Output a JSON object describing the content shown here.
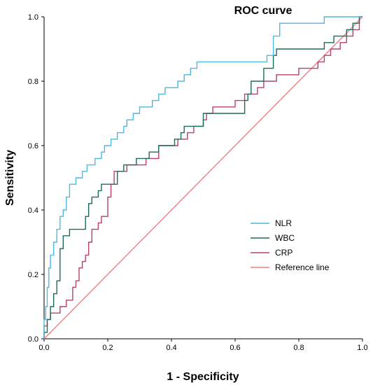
{
  "chart_data": {
    "type": "line",
    "title": "ROC curve",
    "xlabel": "1 - Specificity",
    "ylabel": "Sensitivity",
    "xlim": [
      0.0,
      1.0
    ],
    "ylim": [
      0.0,
      1.0
    ],
    "x_ticks": [
      "0.0",
      "0.2",
      "0.4",
      "0.6",
      "0.8",
      "1.0"
    ],
    "y_ticks": [
      "0.0",
      "0.2",
      "0.4",
      "0.6",
      "0.8",
      "1.0"
    ],
    "grid": false,
    "legend_position": "bottom-right",
    "series": [
      {
        "name": "NLR",
        "color": "#4fb8df",
        "points": [
          [
            0,
            0
          ],
          [
            0,
            0.06
          ],
          [
            0.005,
            0.06
          ],
          [
            0.005,
            0.1
          ],
          [
            0.01,
            0.1
          ],
          [
            0.01,
            0.16
          ],
          [
            0.015,
            0.16
          ],
          [
            0.015,
            0.22
          ],
          [
            0.02,
            0.22
          ],
          [
            0.02,
            0.26
          ],
          [
            0.03,
            0.26
          ],
          [
            0.03,
            0.3
          ],
          [
            0.04,
            0.3
          ],
          [
            0.04,
            0.34
          ],
          [
            0.05,
            0.34
          ],
          [
            0.05,
            0.38
          ],
          [
            0.06,
            0.38
          ],
          [
            0.06,
            0.4
          ],
          [
            0.07,
            0.4
          ],
          [
            0.07,
            0.44
          ],
          [
            0.08,
            0.44
          ],
          [
            0.08,
            0.48
          ],
          [
            0.1,
            0.48
          ],
          [
            0.1,
            0.5
          ],
          [
            0.12,
            0.5
          ],
          [
            0.12,
            0.52
          ],
          [
            0.135,
            0.52
          ],
          [
            0.135,
            0.54
          ],
          [
            0.16,
            0.54
          ],
          [
            0.16,
            0.56
          ],
          [
            0.18,
            0.56
          ],
          [
            0.18,
            0.58
          ],
          [
            0.19,
            0.58
          ],
          [
            0.19,
            0.6
          ],
          [
            0.21,
            0.6
          ],
          [
            0.21,
            0.62
          ],
          [
            0.23,
            0.62
          ],
          [
            0.23,
            0.64
          ],
          [
            0.25,
            0.64
          ],
          [
            0.25,
            0.66
          ],
          [
            0.26,
            0.66
          ],
          [
            0.26,
            0.68
          ],
          [
            0.28,
            0.68
          ],
          [
            0.28,
            0.7
          ],
          [
            0.3,
            0.7
          ],
          [
            0.3,
            0.72
          ],
          [
            0.34,
            0.72
          ],
          [
            0.34,
            0.74
          ],
          [
            0.36,
            0.74
          ],
          [
            0.36,
            0.76
          ],
          [
            0.38,
            0.76
          ],
          [
            0.38,
            0.78
          ],
          [
            0.42,
            0.78
          ],
          [
            0.42,
            0.8
          ],
          [
            0.44,
            0.8
          ],
          [
            0.44,
            0.82
          ],
          [
            0.46,
            0.82
          ],
          [
            0.46,
            0.84
          ],
          [
            0.48,
            0.84
          ],
          [
            0.48,
            0.86
          ],
          [
            0.7,
            0.86
          ],
          [
            0.7,
            0.88
          ],
          [
            0.72,
            0.88
          ],
          [
            0.72,
            0.94
          ],
          [
            0.74,
            0.94
          ],
          [
            0.74,
            0.98
          ],
          [
            0.88,
            0.98
          ],
          [
            0.88,
            1.0
          ],
          [
            1.0,
            1.0
          ]
        ]
      },
      {
        "name": "WBC",
        "color": "#1d6b5c",
        "points": [
          [
            0,
            0
          ],
          [
            0,
            0.02
          ],
          [
            0.01,
            0.02
          ],
          [
            0.01,
            0.06
          ],
          [
            0.02,
            0.06
          ],
          [
            0.02,
            0.1
          ],
          [
            0.03,
            0.1
          ],
          [
            0.03,
            0.14
          ],
          [
            0.04,
            0.14
          ],
          [
            0.04,
            0.18
          ],
          [
            0.05,
            0.18
          ],
          [
            0.05,
            0.28
          ],
          [
            0.06,
            0.28
          ],
          [
            0.06,
            0.32
          ],
          [
            0.08,
            0.32
          ],
          [
            0.08,
            0.34
          ],
          [
            0.13,
            0.34
          ],
          [
            0.13,
            0.38
          ],
          [
            0.14,
            0.38
          ],
          [
            0.14,
            0.42
          ],
          [
            0.15,
            0.42
          ],
          [
            0.15,
            0.44
          ],
          [
            0.17,
            0.44
          ],
          [
            0.17,
            0.46
          ],
          [
            0.18,
            0.46
          ],
          [
            0.18,
            0.48
          ],
          [
            0.23,
            0.48
          ],
          [
            0.23,
            0.52
          ],
          [
            0.25,
            0.52
          ],
          [
            0.25,
            0.54
          ],
          [
            0.29,
            0.54
          ],
          [
            0.29,
            0.56
          ],
          [
            0.33,
            0.56
          ],
          [
            0.33,
            0.58
          ],
          [
            0.36,
            0.58
          ],
          [
            0.36,
            0.6
          ],
          [
            0.41,
            0.6
          ],
          [
            0.41,
            0.62
          ],
          [
            0.43,
            0.62
          ],
          [
            0.43,
            0.64
          ],
          [
            0.44,
            0.64
          ],
          [
            0.44,
            0.66
          ],
          [
            0.5,
            0.66
          ],
          [
            0.5,
            0.7
          ],
          [
            0.63,
            0.7
          ],
          [
            0.63,
            0.74
          ],
          [
            0.64,
            0.74
          ],
          [
            0.64,
            0.76
          ],
          [
            0.65,
            0.76
          ],
          [
            0.65,
            0.8
          ],
          [
            0.69,
            0.8
          ],
          [
            0.69,
            0.84
          ],
          [
            0.72,
            0.84
          ],
          [
            0.72,
            0.88
          ],
          [
            0.73,
            0.88
          ],
          [
            0.73,
            0.9
          ],
          [
            0.88,
            0.9
          ],
          [
            0.88,
            0.92
          ],
          [
            0.91,
            0.92
          ],
          [
            0.91,
            0.94
          ],
          [
            0.95,
            0.94
          ],
          [
            0.95,
            0.96
          ],
          [
            0.97,
            0.96
          ],
          [
            0.97,
            0.98
          ],
          [
            0.99,
            0.98
          ],
          [
            0.99,
            1.0
          ],
          [
            1.0,
            1.0
          ]
        ]
      },
      {
        "name": "CRP",
        "color": "#b8406e",
        "points": [
          [
            0,
            0
          ],
          [
            0,
            0.04
          ],
          [
            0.01,
            0.04
          ],
          [
            0.01,
            0.06
          ],
          [
            0.02,
            0.06
          ],
          [
            0.02,
            0.08
          ],
          [
            0.05,
            0.08
          ],
          [
            0.05,
            0.1
          ],
          [
            0.07,
            0.1
          ],
          [
            0.07,
            0.12
          ],
          [
            0.09,
            0.12
          ],
          [
            0.09,
            0.16
          ],
          [
            0.1,
            0.16
          ],
          [
            0.1,
            0.18
          ],
          [
            0.11,
            0.18
          ],
          [
            0.11,
            0.22
          ],
          [
            0.12,
            0.22
          ],
          [
            0.12,
            0.24
          ],
          [
            0.13,
            0.24
          ],
          [
            0.13,
            0.26
          ],
          [
            0.14,
            0.26
          ],
          [
            0.14,
            0.3
          ],
          [
            0.15,
            0.3
          ],
          [
            0.15,
            0.34
          ],
          [
            0.17,
            0.34
          ],
          [
            0.17,
            0.36
          ],
          [
            0.18,
            0.36
          ],
          [
            0.18,
            0.38
          ],
          [
            0.2,
            0.38
          ],
          [
            0.2,
            0.44
          ],
          [
            0.21,
            0.44
          ],
          [
            0.21,
            0.48
          ],
          [
            0.22,
            0.48
          ],
          [
            0.22,
            0.52
          ],
          [
            0.26,
            0.52
          ],
          [
            0.26,
            0.54
          ],
          [
            0.32,
            0.54
          ],
          [
            0.32,
            0.56
          ],
          [
            0.36,
            0.56
          ],
          [
            0.36,
            0.6
          ],
          [
            0.42,
            0.6
          ],
          [
            0.42,
            0.62
          ],
          [
            0.45,
            0.62
          ],
          [
            0.45,
            0.64
          ],
          [
            0.47,
            0.64
          ],
          [
            0.47,
            0.66
          ],
          [
            0.5,
            0.66
          ],
          [
            0.5,
            0.68
          ],
          [
            0.51,
            0.68
          ],
          [
            0.51,
            0.7
          ],
          [
            0.53,
            0.7
          ],
          [
            0.53,
            0.72
          ],
          [
            0.6,
            0.72
          ],
          [
            0.6,
            0.74
          ],
          [
            0.63,
            0.74
          ],
          [
            0.63,
            0.76
          ],
          [
            0.67,
            0.76
          ],
          [
            0.67,
            0.78
          ],
          [
            0.69,
            0.78
          ],
          [
            0.69,
            0.8
          ],
          [
            0.73,
            0.8
          ],
          [
            0.73,
            0.82
          ],
          [
            0.8,
            0.82
          ],
          [
            0.8,
            0.84
          ],
          [
            0.86,
            0.84
          ],
          [
            0.86,
            0.86
          ],
          [
            0.88,
            0.86
          ],
          [
            0.88,
            0.88
          ],
          [
            0.9,
            0.88
          ],
          [
            0.9,
            0.9
          ],
          [
            0.93,
            0.9
          ],
          [
            0.93,
            0.92
          ],
          [
            0.95,
            0.92
          ],
          [
            0.95,
            0.94
          ],
          [
            0.97,
            0.94
          ],
          [
            0.97,
            0.96
          ],
          [
            0.99,
            0.96
          ],
          [
            0.99,
            1.0
          ],
          [
            1.0,
            1.0
          ]
        ]
      },
      {
        "name": "Reference line",
        "color": "#f08080",
        "points": [
          [
            0,
            0
          ],
          [
            1,
            1
          ]
        ]
      }
    ]
  }
}
